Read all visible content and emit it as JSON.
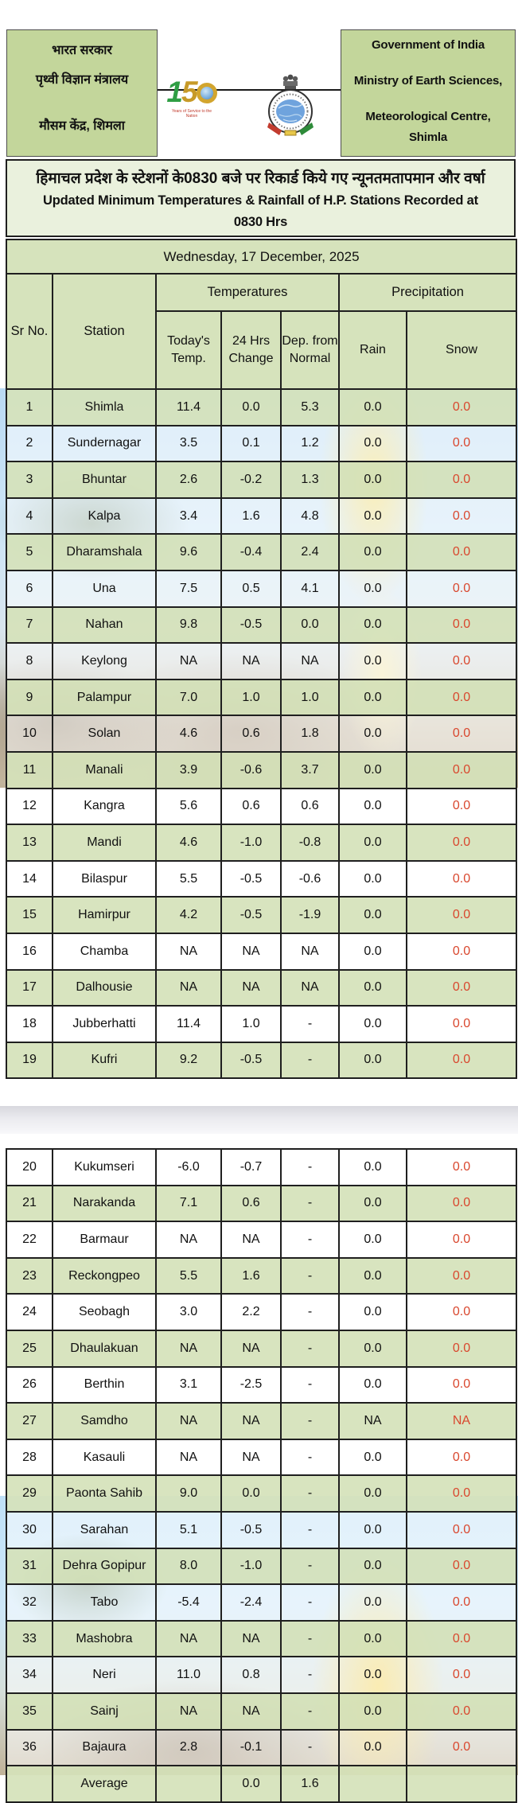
{
  "masthead": {
    "left_box": {
      "line1": "भारत सरकार",
      "line2": "पृथ्वी विज्ञान मंत्रालय",
      "line3": "मौसम केंद्र, शिमला"
    },
    "right_box": {
      "line1": "Government of India",
      "line2": "Ministry of Earth Sciences,",
      "line3": "Meteorological Centre,",
      "line4": "Shimla"
    },
    "logo150": {
      "digit_1": "1",
      "digit_5": "5",
      "caption": "Years of Service to the Nation"
    }
  },
  "title": {
    "hindi": "हिमाचल प्रदेश के स्टेशनों के0830 बजे पर रिकार्ड किये गए न्यूनतमतापमान और वर्षा",
    "english_line1": "Updated Minimum Temperatures & Rainfall of H.P. Stations Recorded at",
    "english_line2": "0830 Hrs"
  },
  "date_row": "Wednesday, 17 December, 2025",
  "table": {
    "headers": {
      "sr_no": "Sr No.",
      "station": "Station",
      "temperatures_group": "Temperatures",
      "precipitation_group": "Precipitation",
      "todays_temp": "Today's Temp.",
      "change_24h": "24 Hrs Change",
      "dep_from_normal": "Dep. from Normal",
      "rain": "Rain",
      "snow": "Snow"
    },
    "page1_rows": [
      [
        "1",
        "Shimla",
        "11.4",
        "0.0",
        "5.3",
        "0.0",
        "0.0"
      ],
      [
        "2",
        "Sundernagar",
        "3.5",
        "0.1",
        "1.2",
        "0.0",
        "0.0"
      ],
      [
        "3",
        "Bhuntar",
        "2.6",
        "-0.2",
        "1.3",
        "0.0",
        "0.0"
      ],
      [
        "4",
        "Kalpa",
        "3.4",
        "1.6",
        "4.8",
        "0.0",
        "0.0"
      ],
      [
        "5",
        "Dharamshala",
        "9.6",
        "-0.4",
        "2.4",
        "0.0",
        "0.0"
      ],
      [
        "6",
        "Una",
        "7.5",
        "0.5",
        "4.1",
        "0.0",
        "0.0"
      ],
      [
        "7",
        "Nahan",
        "9.8",
        "-0.5",
        "0.0",
        "0.0",
        "0.0"
      ],
      [
        "8",
        "Keylong",
        "NA",
        "NA",
        "NA",
        "0.0",
        "0.0"
      ],
      [
        "9",
        "Palampur",
        "7.0",
        "1.0",
        "1.0",
        "0.0",
        "0.0"
      ],
      [
        "10",
        "Solan",
        "4.6",
        "0.6",
        "1.8",
        "0.0",
        "0.0"
      ],
      [
        "11",
        "Manali",
        "3.9",
        "-0.6",
        "3.7",
        "0.0",
        "0.0"
      ],
      [
        "12",
        "Kangra",
        "5.6",
        "0.6",
        "0.6",
        "0.0",
        "0.0"
      ],
      [
        "13",
        "Mandi",
        "4.6",
        "-1.0",
        "-0.8",
        "0.0",
        "0.0"
      ],
      [
        "14",
        "Bilaspur",
        "5.5",
        "-0.5",
        "-0.6",
        "0.0",
        "0.0"
      ],
      [
        "15",
        "Hamirpur",
        "4.2",
        "-0.5",
        "-1.9",
        "0.0",
        "0.0"
      ],
      [
        "16",
        "Chamba",
        "NA",
        "NA",
        "NA",
        "0.0",
        "0.0"
      ],
      [
        "17",
        "Dalhousie",
        "NA",
        "NA",
        "NA",
        "0.0",
        "0.0"
      ],
      [
        "18",
        "Jubberhatti",
        "11.4",
        "1.0",
        "-",
        "0.0",
        "0.0"
      ],
      [
        "19",
        "Kufri",
        "9.2",
        "-0.5",
        "-",
        "0.0",
        "0.0"
      ]
    ],
    "page2_rows": [
      [
        "20",
        "Kukumseri",
        "-6.0",
        "-0.7",
        "-",
        "0.0",
        "0.0"
      ],
      [
        "21",
        "Narakanda",
        "7.1",
        "0.6",
        "-",
        "0.0",
        "0.0"
      ],
      [
        "22",
        "Barmaur",
        "NA",
        "NA",
        "-",
        "0.0",
        "0.0"
      ],
      [
        "23",
        "Reckongpeo",
        "5.5",
        "1.6",
        "-",
        "0.0",
        "0.0"
      ],
      [
        "24",
        "Seobagh",
        "3.0",
        "2.2",
        "-",
        "0.0",
        "0.0"
      ],
      [
        "25",
        "Dhaulakuan",
        "NA",
        "NA",
        "-",
        "0.0",
        "0.0"
      ],
      [
        "26",
        "Berthin",
        "3.1",
        "-2.5",
        "-",
        "0.0",
        "0.0"
      ],
      [
        "27",
        "Samdho",
        "NA",
        "NA",
        "-",
        "NA",
        "NA"
      ],
      [
        "28",
        "Kasauli",
        "NA",
        "NA",
        "-",
        "0.0",
        "0.0"
      ],
      [
        "29",
        "Paonta Sahib",
        "9.0",
        "0.0",
        "-",
        "0.0",
        "0.0"
      ],
      [
        "30",
        "Sarahan",
        "5.1",
        "-0.5",
        "-",
        "0.0",
        "0.0"
      ],
      [
        "31",
        "Dehra Gopipur",
        "8.0",
        "-1.0",
        "-",
        "0.0",
        "0.0"
      ],
      [
        "32",
        "Tabo",
        "-5.4",
        "-2.4",
        "-",
        "0.0",
        "0.0"
      ],
      [
        "33",
        "Mashobra",
        "NA",
        "NA",
        "-",
        "0.0",
        "0.0"
      ],
      [
        "34",
        "Neri",
        "11.0",
        "0.8",
        "-",
        "0.0",
        "0.0"
      ],
      [
        "35",
        "Sainj",
        "NA",
        "NA",
        "-",
        "0.0",
        "0.0"
      ],
      [
        "36",
        "Bajaura",
        "2.8",
        "-0.1",
        "-",
        "0.0",
        "0.0"
      ]
    ],
    "footer_rows": [
      [
        "",
        "Average",
        "",
        "0.0",
        "1.6",
        "",
        ""
      ]
    ]
  },
  "colors": {
    "masthead_green": "#c3d69b",
    "title_band_green": "#eaf1dd",
    "row_green": "#d6e3bc",
    "snow_value_red": "#d9472e"
  }
}
